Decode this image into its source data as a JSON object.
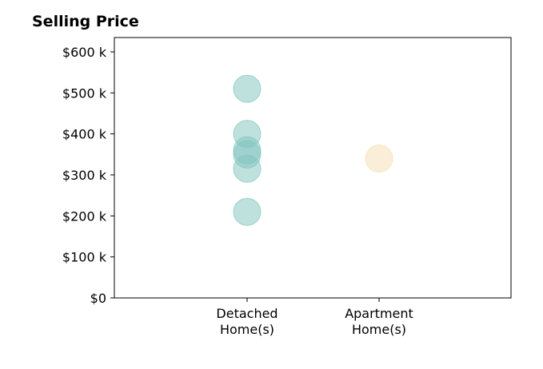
{
  "chart_data": {
    "type": "scatter",
    "title": "Selling Price",
    "xlabel": "",
    "ylabel": "",
    "categories": [
      [
        "Detached",
        "Home(s)"
      ],
      [
        "Apartment",
        "Home(s)"
      ]
    ],
    "series": [
      {
        "category_index": 0,
        "values": [
          210,
          315,
          350,
          360,
          400,
          510
        ],
        "color": "#7fc4bd"
      },
      {
        "category_index": 1,
        "values": [
          340
        ],
        "color": "#f5deb3"
      }
    ],
    "yticks": [
      {
        "value": 0,
        "label": "$0"
      },
      {
        "value": 100,
        "label": "$100 k"
      },
      {
        "value": 200,
        "label": "$200 k"
      },
      {
        "value": 300,
        "label": "$300 k"
      },
      {
        "value": 400,
        "label": "$400 k"
      },
      {
        "value": 500,
        "label": "$500 k"
      },
      {
        "value": 600,
        "label": "$600 k"
      }
    ],
    "ylim": [
      0,
      635
    ],
    "grid": false
  }
}
